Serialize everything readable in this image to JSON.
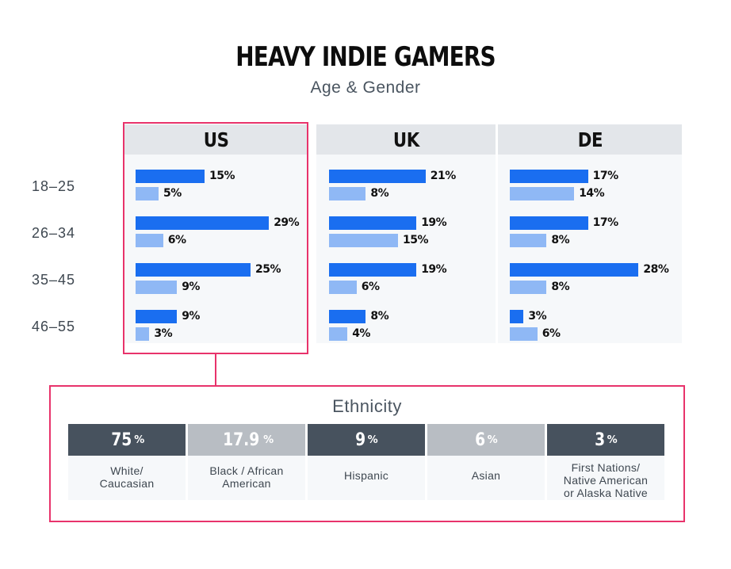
{
  "chart_data": [
    {
      "type": "bar",
      "title": "HEAVY INDIE GAMERS",
      "subtitle": "Age & Gender",
      "categories": [
        "18-25",
        "26-34",
        "35-45",
        "46-55"
      ],
      "panels": [
        {
          "name": "US",
          "highlighted": true,
          "series": [
            {
              "values": [
                15,
                29,
                25,
                9
              ],
              "labels": [
                "15%",
                "29%",
                "25%",
                "9%"
              ]
            },
            {
              "values": [
                5,
                6,
                9,
                3
              ],
              "labels": [
                "5%",
                "6%",
                "9%",
                "3%"
              ]
            }
          ]
        },
        {
          "name": "UK",
          "series": [
            {
              "values": [
                21,
                19,
                19,
                8
              ],
              "labels": [
                "21%",
                "19%",
                "19%",
                "8%"
              ]
            },
            {
              "values": [
                8,
                15,
                6,
                4
              ],
              "labels": [
                "8%",
                "15%",
                "6%",
                "4%"
              ]
            }
          ]
        },
        {
          "name": "DE",
          "series": [
            {
              "values": [
                17,
                17,
                28,
                3
              ],
              "labels": [
                "17%",
                "17%",
                "28%",
                "3%"
              ]
            },
            {
              "values": [
                14,
                8,
                8,
                6
              ],
              "labels": [
                "14%",
                "8%",
                "8%",
                "6%"
              ]
            }
          ]
        }
      ],
      "series_colors": [
        "#1a6ef0",
        "#8fb8f5"
      ],
      "grid": false,
      "legend": "none"
    },
    {
      "type": "table",
      "title": "Ethnicity",
      "items": [
        {
          "value": "75",
          "unit": "%",
          "label_lines": [
            "White/",
            "Caucasian"
          ],
          "tone": "dark"
        },
        {
          "value": "17.9",
          "unit": "%",
          "label_lines": [
            "Black / African",
            "American"
          ],
          "tone": "light"
        },
        {
          "value": "9",
          "unit": "%",
          "label_lines": [
            "Hispanic"
          ],
          "tone": "dark"
        },
        {
          "value": "6",
          "unit": "%",
          "label_lines": [
            "Asian"
          ],
          "tone": "light"
        },
        {
          "value": "3",
          "unit": "%",
          "label_lines": [
            "First Nations/",
            "Native American",
            "or Alaska Native"
          ],
          "tone": "dark"
        }
      ]
    }
  ],
  "colors": {
    "highlight": "#e8336b",
    "tile_dark": "#47525e",
    "tile_light": "#b8bdc3",
    "header_bg": "#e3e6ea"
  }
}
